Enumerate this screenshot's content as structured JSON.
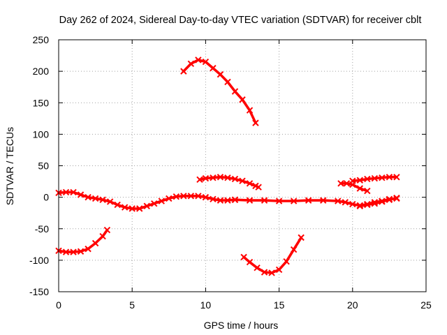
{
  "chart_data": {
    "type": "scatter",
    "title": "Day 262 of 2024, Sidereal Day-to-day VTEC variation (SDTVAR) for receiver cblt",
    "xlabel": "GPS time / hours",
    "ylabel": "SDTVAR / TECUs",
    "xlim": [
      0,
      25
    ],
    "ylim": [
      -150,
      250
    ],
    "xticks": [
      0,
      5,
      10,
      15,
      20,
      25
    ],
    "yticks": [
      -150,
      -100,
      -50,
      0,
      50,
      100,
      150,
      200,
      250
    ],
    "grid": true,
    "color": "#ff0000",
    "series": [
      {
        "name": "seg-a",
        "points": [
          [
            0,
            7
          ],
          [
            0.5,
            8
          ],
          [
            1,
            8
          ],
          [
            1.5,
            4
          ],
          [
            2,
            0
          ],
          [
            2.5,
            -2
          ],
          [
            3,
            -4
          ],
          [
            3.5,
            -7
          ],
          [
            4,
            -12
          ],
          [
            4.5,
            -16
          ],
          [
            5,
            -18
          ],
          [
            5.5,
            -18
          ],
          [
            6,
            -14
          ],
          [
            6.5,
            -10
          ],
          [
            7,
            -6
          ],
          [
            7.5,
            -2
          ],
          [
            8,
            1
          ],
          [
            8.5,
            2
          ],
          [
            9,
            2
          ],
          [
            9.5,
            2
          ],
          [
            10,
            0
          ],
          [
            10.5,
            -3
          ],
          [
            11,
            -5
          ],
          [
            11.5,
            -5
          ],
          [
            12,
            -4
          ]
        ]
      },
      {
        "name": "seg-b",
        "points": [
          [
            0,
            -85
          ],
          [
            0.5,
            -87
          ],
          [
            1,
            -87
          ],
          [
            1.5,
            -86
          ],
          [
            2,
            -82
          ],
          [
            2.5,
            -73
          ],
          [
            3,
            -62
          ],
          [
            3.3,
            -52
          ]
        ]
      },
      {
        "name": "seg-c",
        "points": [
          [
            8.5,
            200
          ],
          [
            9,
            212
          ],
          [
            9.5,
            218
          ],
          [
            10,
            215
          ],
          [
            10.5,
            205
          ],
          [
            11,
            195
          ],
          [
            11.5,
            183
          ],
          [
            12,
            168
          ],
          [
            12.5,
            155
          ],
          [
            13,
            138
          ],
          [
            13.4,
            118
          ]
        ]
      },
      {
        "name": "seg-d",
        "points": [
          [
            9.6,
            28
          ],
          [
            10,
            30
          ],
          [
            10.5,
            31
          ],
          [
            11,
            32
          ],
          [
            11.5,
            31
          ],
          [
            12,
            29
          ],
          [
            12.5,
            26
          ],
          [
            13,
            22
          ],
          [
            13.4,
            18
          ],
          [
            13.6,
            16
          ]
        ]
      },
      {
        "name": "seg-e",
        "points": [
          [
            12.6,
            -95
          ],
          [
            13,
            -103
          ],
          [
            13.5,
            -112
          ],
          [
            14,
            -119
          ],
          [
            14.5,
            -120
          ],
          [
            15,
            -115
          ],
          [
            15.5,
            -102
          ],
          [
            16,
            -83
          ],
          [
            16.5,
            -64
          ]
        ]
      },
      {
        "name": "seg-f",
        "points": [
          [
            12,
            -4
          ],
          [
            13,
            -5
          ],
          [
            14,
            -5
          ],
          [
            15,
            -6
          ],
          [
            16,
            -6
          ],
          [
            17,
            -5
          ],
          [
            18,
            -5
          ],
          [
            19,
            -6
          ],
          [
            19.5,
            -8
          ],
          [
            20,
            -11
          ],
          [
            20.5,
            -13
          ],
          [
            21,
            -11
          ],
          [
            21.5,
            -8
          ],
          [
            22,
            -6
          ],
          [
            22.5,
            -3
          ],
          [
            23,
            -2
          ]
        ]
      },
      {
        "name": "seg-g",
        "points": [
          [
            20.5,
            -14
          ],
          [
            21,
            -12
          ],
          [
            21.5,
            -10
          ],
          [
            22,
            -7
          ],
          [
            22.5,
            -4
          ],
          [
            23,
            -1
          ]
        ]
      },
      {
        "name": "seg-h",
        "points": [
          [
            19.2,
            22
          ],
          [
            19.6,
            22
          ],
          [
            20,
            20
          ],
          [
            20.5,
            14
          ],
          [
            21,
            10
          ]
        ]
      },
      {
        "name": "seg-i",
        "points": [
          [
            20,
            26
          ],
          [
            20.5,
            27
          ],
          [
            21,
            29
          ],
          [
            21.5,
            30
          ],
          [
            22,
            31
          ],
          [
            22.5,
            32
          ],
          [
            23,
            32
          ]
        ]
      }
    ]
  }
}
